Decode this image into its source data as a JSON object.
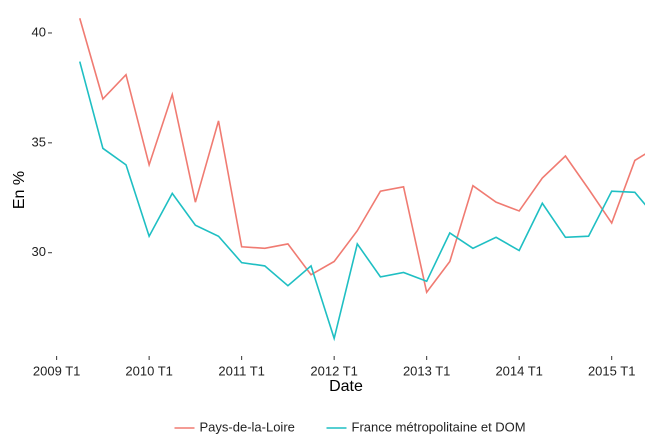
{
  "chart_data": {
    "type": "line",
    "x_label": "Date",
    "y_label": "En %",
    "x": [
      2009.25,
      2009.5,
      2009.75,
      2010,
      2010.25,
      2010.5,
      2010.75,
      2011,
      2011.25,
      2011.5,
      2011.75,
      2012,
      2012.25,
      2012.5,
      2012.75,
      2013,
      2013.25,
      2013.5,
      2013.75,
      2014,
      2014.25,
      2014.5,
      2014.75,
      2015,
      2015.25,
      2015.5
    ],
    "series": [
      {
        "name": "Pays-de-la-Loire",
        "color": "#f07b72",
        "values": [
          40.67,
          37.0,
          38.1,
          34.0,
          37.2,
          32.3,
          36.0,
          30.27,
          30.2,
          30.4,
          29.0,
          29.6,
          31.0,
          32.8,
          33.0,
          28.2,
          29.6,
          33.05,
          32.3,
          31.9,
          33.4,
          34.4,
          32.9,
          31.35,
          34.2,
          34.85
        ]
      },
      {
        "name": "France métropolitaine et DOM",
        "color": "#1fbfc3",
        "values": [
          38.7,
          34.75,
          34.0,
          30.75,
          32.7,
          31.25,
          30.75,
          29.55,
          29.4,
          28.5,
          29.4,
          26.1,
          30.4,
          28.9,
          29.1,
          28.7,
          30.9,
          30.2,
          30.7,
          30.1,
          32.25,
          30.7,
          30.75,
          32.8,
          32.75,
          31.5
        ]
      }
    ],
    "xlim": [
      2008.95,
      2015.36
    ],
    "xticks": [
      {
        "value": 2009,
        "label": "2009 T1"
      },
      {
        "value": 2010,
        "label": "2010 T1"
      },
      {
        "value": 2011,
        "label": "2011 T1"
      },
      {
        "value": 2012,
        "label": "2012 T1"
      },
      {
        "value": 2013,
        "label": "2013 T1"
      },
      {
        "value": 2014,
        "label": "2014 T1"
      },
      {
        "value": 2015,
        "label": "2015 T1"
      }
    ],
    "ylim": [
      25.3,
      41.5
    ],
    "yticks": [
      30,
      35,
      40
    ],
    "legend": "bottom"
  }
}
